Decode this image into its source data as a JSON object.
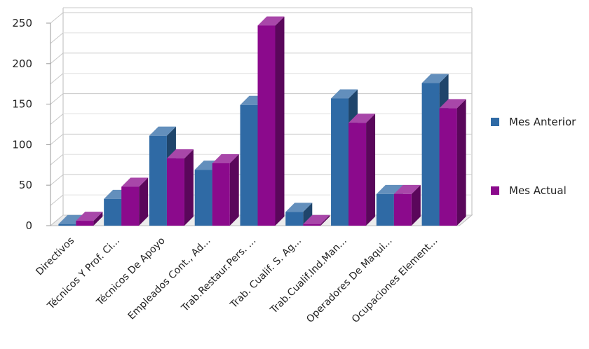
{
  "chart_data": {
    "type": "bar",
    "categories": [
      "Directivos",
      "Técnicos Y Prof. Ci...",
      "Técnicos De Apoyo",
      "Empleados Cont., Ad...",
      "Trab.Restaur.Pers. ...",
      "Trab. Cualif. S. Ag...",
      "Trab.Cualif.Ind.Man...",
      "Operadores De Maqui...",
      "Ocupaciones Element..."
    ],
    "series": [
      {
        "name": "Mes Anterior",
        "color": "#2f6aa5",
        "values": [
          2,
          33,
          111,
          69,
          149,
          17,
          157,
          39,
          176
        ]
      },
      {
        "name": "Mes Actual",
        "color": "#8b0a8c",
        "values": [
          6,
          48,
          83,
          77,
          247,
          2,
          127,
          39,
          145
        ]
      }
    ],
    "yticks": [
      0,
      50,
      100,
      150,
      200,
      250
    ],
    "ylim": [
      0,
      250
    ],
    "grid": true,
    "legend": "right",
    "three_d": true
  }
}
